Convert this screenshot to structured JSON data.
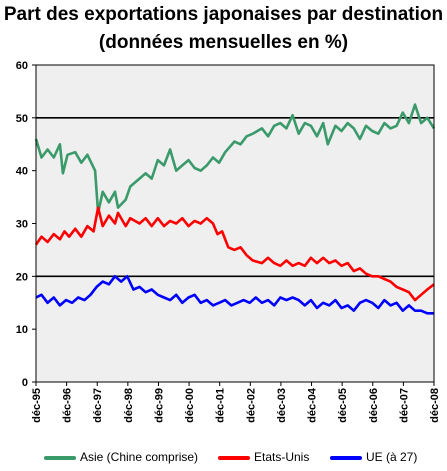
{
  "title": {
    "line1": "Part des exportations japonaises par destination",
    "line2": "(données mensuelles en %)"
  },
  "colors": {
    "asie": "#3a9a6a",
    "etats_unis": "#ff0000",
    "ue": "#0000ff",
    "background": "#efefef"
  },
  "chart_data": {
    "type": "line",
    "title": "Part des exportations japonaises par destination (données mensuelles en %)",
    "xlabel": "",
    "ylabel": "",
    "ylim": [
      0,
      60
    ],
    "yticks": [
      "0",
      "10",
      "20",
      "30",
      "40",
      "50",
      "60"
    ],
    "xlim": [
      1995.92,
      2008.92
    ],
    "x_tick_labels": [
      "déc-95",
      "déc-96",
      "déc-97",
      "déc-98",
      "déc-99",
      "déc-00",
      "déc-01",
      "déc-02",
      "déc-03",
      "déc-04",
      "déc-05",
      "déc-06",
      "déc-07",
      "déc-08"
    ],
    "reference_lines": [
      20,
      50
    ],
    "grid": false,
    "legend_position": "bottom",
    "series": [
      {
        "name": "Asie (Chine comprise)",
        "color": "#3a9a6a",
        "points": [
          [
            1995.92,
            46
          ],
          [
            1996.1,
            42.5
          ],
          [
            1996.3,
            44
          ],
          [
            1996.5,
            42.5
          ],
          [
            1996.7,
            45
          ],
          [
            1996.8,
            39.5
          ],
          [
            1996.95,
            43
          ],
          [
            1997.2,
            43.5
          ],
          [
            1997.4,
            41.5
          ],
          [
            1997.6,
            43
          ],
          [
            1997.85,
            40
          ],
          [
            1997.95,
            32
          ],
          [
            1998.1,
            36
          ],
          [
            1998.3,
            34
          ],
          [
            1998.5,
            36
          ],
          [
            1998.6,
            33
          ],
          [
            1998.85,
            34.5
          ],
          [
            1999.0,
            37
          ],
          [
            1999.3,
            38.5
          ],
          [
            1999.5,
            39.5
          ],
          [
            1999.7,
            38.5
          ],
          [
            1999.9,
            42
          ],
          [
            2000.1,
            41
          ],
          [
            2000.3,
            44
          ],
          [
            2000.5,
            40
          ],
          [
            2000.7,
            41
          ],
          [
            2000.9,
            42
          ],
          [
            2001.1,
            40.5
          ],
          [
            2001.3,
            40
          ],
          [
            2001.5,
            41
          ],
          [
            2001.7,
            42.5
          ],
          [
            2001.9,
            41.5
          ],
          [
            2002.1,
            43.5
          ],
          [
            2002.4,
            45.5
          ],
          [
            2002.6,
            45
          ],
          [
            2002.8,
            46.5
          ],
          [
            2003.0,
            47
          ],
          [
            2003.3,
            48
          ],
          [
            2003.5,
            46.5
          ],
          [
            2003.7,
            48.5
          ],
          [
            2003.9,
            49
          ],
          [
            2004.1,
            48
          ],
          [
            2004.3,
            50.5
          ],
          [
            2004.5,
            47
          ],
          [
            2004.7,
            49
          ],
          [
            2004.9,
            48.5
          ],
          [
            2005.1,
            46.5
          ],
          [
            2005.3,
            49
          ],
          [
            2005.45,
            45
          ],
          [
            2005.7,
            48.5
          ],
          [
            2005.9,
            47.5
          ],
          [
            2006.1,
            49
          ],
          [
            2006.3,
            48
          ],
          [
            2006.5,
            46
          ],
          [
            2006.7,
            48.5
          ],
          [
            2006.9,
            47.5
          ],
          [
            2007.1,
            47
          ],
          [
            2007.3,
            49
          ],
          [
            2007.5,
            48
          ],
          [
            2007.7,
            48.5
          ],
          [
            2007.9,
            51
          ],
          [
            2008.1,
            49
          ],
          [
            2008.3,
            52.5
          ],
          [
            2008.5,
            49
          ],
          [
            2008.7,
            50
          ],
          [
            2008.92,
            48
          ]
        ]
      },
      {
        "name": "Etats-Unis",
        "color": "#ff0000",
        "points": [
          [
            1995.92,
            26
          ],
          [
            1996.1,
            27.5
          ],
          [
            1996.3,
            26.5
          ],
          [
            1996.5,
            28
          ],
          [
            1996.7,
            27
          ],
          [
            1996.85,
            28.5
          ],
          [
            1997.0,
            27.5
          ],
          [
            1997.2,
            29
          ],
          [
            1997.4,
            27.5
          ],
          [
            1997.6,
            29.5
          ],
          [
            1997.8,
            28.5
          ],
          [
            1997.95,
            33
          ],
          [
            1998.1,
            29.5
          ],
          [
            1998.3,
            31.5
          ],
          [
            1998.5,
            30
          ],
          [
            1998.6,
            32
          ],
          [
            1998.85,
            29.5
          ],
          [
            1999.0,
            31
          ],
          [
            1999.3,
            30
          ],
          [
            1999.5,
            31
          ],
          [
            1999.7,
            29.5
          ],
          [
            1999.9,
            31
          ],
          [
            2000.1,
            29.5
          ],
          [
            2000.3,
            30.5
          ],
          [
            2000.5,
            30
          ],
          [
            2000.7,
            31
          ],
          [
            2000.9,
            29.5
          ],
          [
            2001.1,
            30.5
          ],
          [
            2001.3,
            30
          ],
          [
            2001.5,
            31
          ],
          [
            2001.7,
            30
          ],
          [
            2001.85,
            28
          ],
          [
            2002.0,
            28.5
          ],
          [
            2002.2,
            25.5
          ],
          [
            2002.4,
            25
          ],
          [
            2002.6,
            25.5
          ],
          [
            2002.8,
            24
          ],
          [
            2003.0,
            23
          ],
          [
            2003.3,
            22.5
          ],
          [
            2003.5,
            23.5
          ],
          [
            2003.7,
            22.5
          ],
          [
            2003.9,
            22
          ],
          [
            2004.1,
            23
          ],
          [
            2004.3,
            22
          ],
          [
            2004.5,
            22.5
          ],
          [
            2004.7,
            22
          ],
          [
            2004.9,
            23.5
          ],
          [
            2005.1,
            22.5
          ],
          [
            2005.3,
            23.5
          ],
          [
            2005.5,
            22.5
          ],
          [
            2005.7,
            23
          ],
          [
            2005.9,
            22
          ],
          [
            2006.1,
            22.5
          ],
          [
            2006.3,
            21
          ],
          [
            2006.5,
            21.5
          ],
          [
            2006.7,
            20.5
          ],
          [
            2006.9,
            20
          ],
          [
            2007.1,
            20
          ],
          [
            2007.3,
            19.5
          ],
          [
            2007.5,
            19
          ],
          [
            2007.7,
            18
          ],
          [
            2007.9,
            17.5
          ],
          [
            2008.1,
            17
          ],
          [
            2008.3,
            15.5
          ],
          [
            2008.5,
            16.5
          ],
          [
            2008.7,
            17.5
          ],
          [
            2008.92,
            18.5
          ]
        ]
      },
      {
        "name": "UE (à 27)",
        "color": "#0000ff",
        "points": [
          [
            1995.92,
            16
          ],
          [
            1996.1,
            16.5
          ],
          [
            1996.3,
            15
          ],
          [
            1996.5,
            16
          ],
          [
            1996.7,
            14.5
          ],
          [
            1996.9,
            15.5
          ],
          [
            1997.1,
            15
          ],
          [
            1997.3,
            16
          ],
          [
            1997.5,
            15.5
          ],
          [
            1997.7,
            16.5
          ],
          [
            1997.9,
            18
          ],
          [
            1998.1,
            19
          ],
          [
            1998.3,
            18.5
          ],
          [
            1998.5,
            20
          ],
          [
            1998.7,
            19
          ],
          [
            1998.9,
            20
          ],
          [
            1999.1,
            17.5
          ],
          [
            1999.3,
            18
          ],
          [
            1999.5,
            17
          ],
          [
            1999.7,
            17.5
          ],
          [
            1999.9,
            16.5
          ],
          [
            2000.1,
            16
          ],
          [
            2000.3,
            15.5
          ],
          [
            2000.5,
            16.5
          ],
          [
            2000.7,
            15
          ],
          [
            2000.9,
            16
          ],
          [
            2001.1,
            16.5
          ],
          [
            2001.3,
            15
          ],
          [
            2001.5,
            15.5
          ],
          [
            2001.7,
            14.5
          ],
          [
            2001.9,
            15
          ],
          [
            2002.1,
            15.5
          ],
          [
            2002.3,
            14.5
          ],
          [
            2002.5,
            15
          ],
          [
            2002.7,
            15.5
          ],
          [
            2002.9,
            15
          ],
          [
            2003.1,
            16
          ],
          [
            2003.3,
            15
          ],
          [
            2003.5,
            15.5
          ],
          [
            2003.7,
            14.5
          ],
          [
            2003.9,
            16
          ],
          [
            2004.1,
            15.5
          ],
          [
            2004.3,
            16
          ],
          [
            2004.5,
            15.5
          ],
          [
            2004.7,
            14.5
          ],
          [
            2004.9,
            15.5
          ],
          [
            2005.1,
            14
          ],
          [
            2005.3,
            15
          ],
          [
            2005.5,
            14.5
          ],
          [
            2005.7,
            15.5
          ],
          [
            2005.9,
            14
          ],
          [
            2006.1,
            14.5
          ],
          [
            2006.3,
            13.5
          ],
          [
            2006.5,
            15
          ],
          [
            2006.7,
            15.5
          ],
          [
            2006.9,
            15
          ],
          [
            2007.1,
            14
          ],
          [
            2007.3,
            15.5
          ],
          [
            2007.5,
            14.5
          ],
          [
            2007.7,
            15
          ],
          [
            2007.9,
            13.5
          ],
          [
            2008.1,
            14.5
          ],
          [
            2008.3,
            13.5
          ],
          [
            2008.5,
            13.5
          ],
          [
            2008.7,
            13
          ],
          [
            2008.92,
            13
          ]
        ]
      }
    ]
  }
}
